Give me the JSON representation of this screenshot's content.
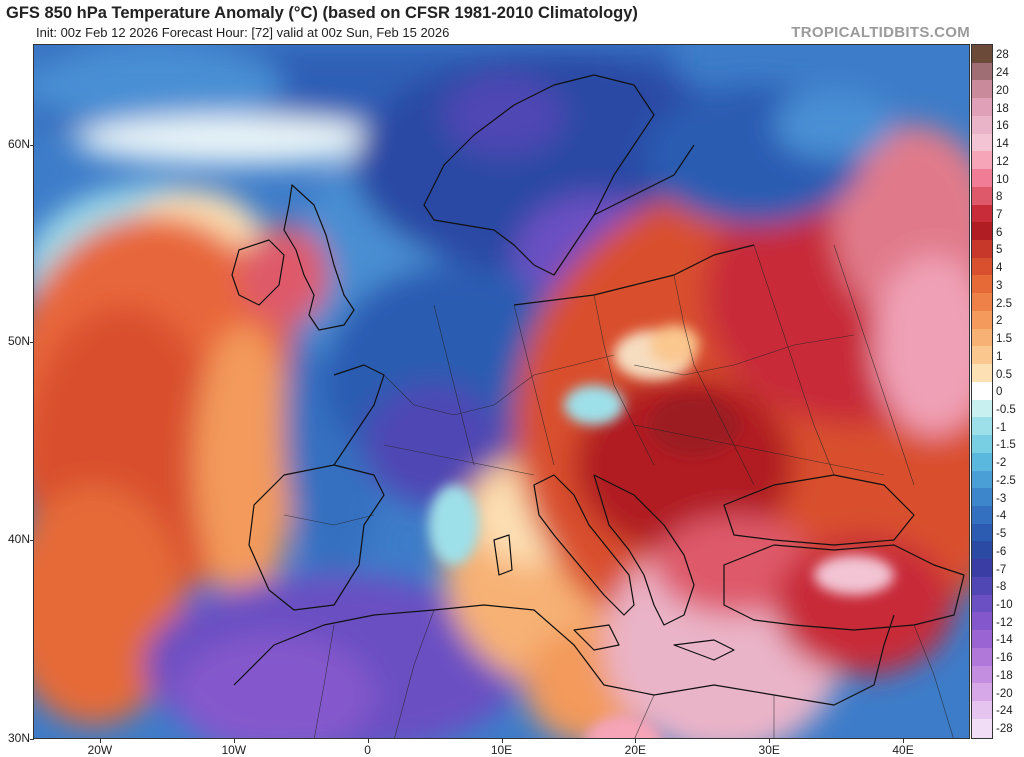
{
  "header": {
    "title": "GFS 850 hPa Temperature Anomaly (°C) (based on CFSR 1981-2010 Climatology)",
    "subtitle": "Init: 00z Feb 12 2026   Forecast Hour: [72]   valid at 00z Sun, Feb 15 2026",
    "brand": "TROPICALTIDBITS.COM"
  },
  "map": {
    "lat_labels": [
      "60N",
      "50N",
      "40N",
      "30N"
    ],
    "lon_labels": [
      "20W",
      "10W",
      "0",
      "10E",
      "20E",
      "30E",
      "40E"
    ],
    "lat_values": [
      60,
      50,
      40,
      30
    ],
    "lon_values": [
      -20,
      -10,
      0,
      10,
      20,
      30,
      40
    ],
    "extent": {
      "lon_min": -25,
      "lon_max": 45,
      "lat_min": 30,
      "lat_max": 65
    }
  },
  "colorbar": {
    "labels": [
      "28",
      "24",
      "20",
      "18",
      "16",
      "14",
      "12",
      "10",
      "8",
      "7",
      "6",
      "5",
      "4",
      "3",
      "2.5",
      "2",
      "1.5",
      "1",
      "0.5",
      "0",
      "-0.5",
      "-1",
      "-1.5",
      "-2",
      "-2.5",
      "-3",
      "-4",
      "-5",
      "-6",
      "-7",
      "-8",
      "-10",
      "-12",
      "-14",
      "-16",
      "-18",
      "-20",
      "-24",
      "-28"
    ],
    "colors": [
      "#6b4a3a",
      "#9e6e74",
      "#c98a9b",
      "#e0a0b8",
      "#eab4c8",
      "#f2c4d4",
      "#f6a4b8",
      "#f07c95",
      "#de5a6a",
      "#c82c38",
      "#b01e24",
      "#c7382b",
      "#d9502f",
      "#e56a38",
      "#ee8148",
      "#f39a5c",
      "#f7b175",
      "#fac78f",
      "#fde0b4",
      "#ffffff",
      "#c8f0f0",
      "#9ee0ea",
      "#78cfe4",
      "#5ab8de",
      "#4aa0d6",
      "#3d86cc",
      "#3470c0",
      "#2c5cb2",
      "#2a4aa4",
      "#3a3ea4",
      "#5046b4",
      "#6a50c2",
      "#8458cc",
      "#9a64d2",
      "#b078d8",
      "#c48ee0",
      "#d6a8e8",
      "#e6c4f0",
      "#f2ddf7"
    ]
  }
}
